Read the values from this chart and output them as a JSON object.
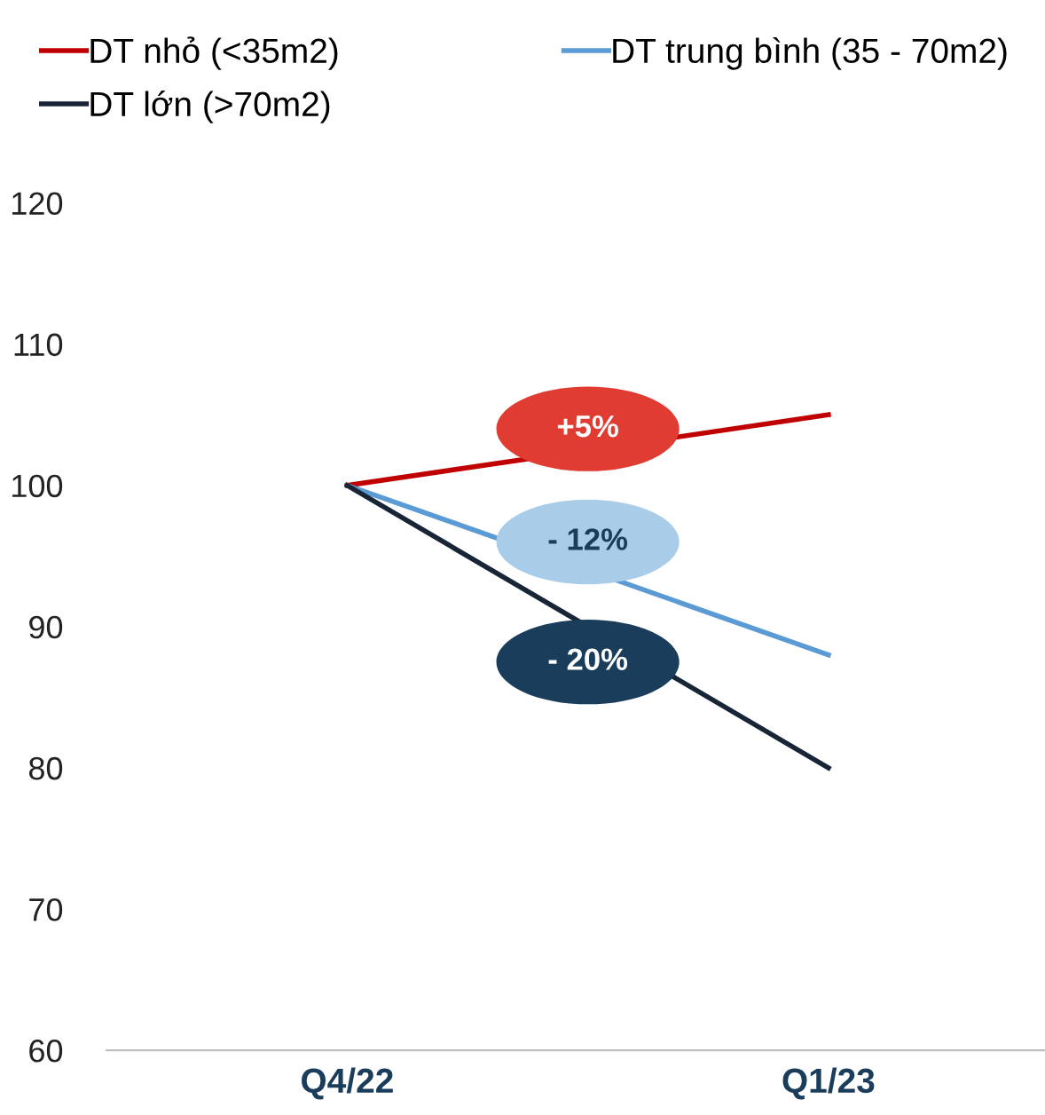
{
  "chart_data": {
    "type": "line",
    "categories": [
      "Q4/22",
      "Q1/23"
    ],
    "series": [
      {
        "name": "DT nhỏ (<35m2)",
        "color": "#c00000",
        "values": [
          100,
          105
        ]
      },
      {
        "name": "DT trung bình (35 - 70m2)",
        "color": "#5b9bd5",
        "values": [
          100,
          88
        ]
      },
      {
        "name": "DT lớn (>70m2)",
        "color": "#172536",
        "values": [
          100,
          80
        ]
      }
    ],
    "annotations": [
      "+5%",
      "- 12%",
      "- 20%"
    ],
    "ylim": [
      60,
      120
    ],
    "yticks": [
      60,
      70,
      80,
      90,
      100,
      110,
      120
    ],
    "grid": false,
    "legend": "top",
    "marker": "none",
    "line_style": "solid"
  }
}
